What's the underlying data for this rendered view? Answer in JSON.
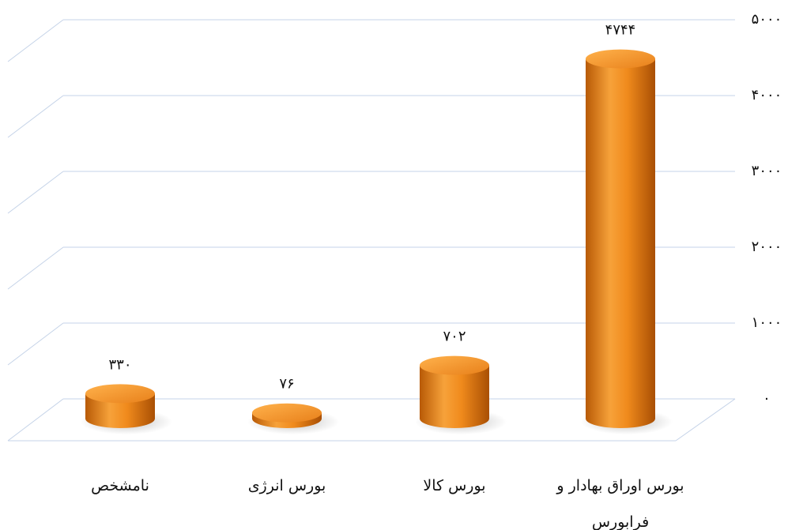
{
  "chart_data": {
    "type": "bar",
    "categories": [
      "نامشخص",
      "بورس انرژی",
      "بورس کالا",
      "بورس اوراق بهادار و فرابورس"
    ],
    "values": [
      330,
      76,
      702,
      4744
    ],
    "value_labels": [
      "۳۳۰",
      "۷۶",
      "۷۰۲",
      "۴۷۴۴"
    ],
    "color": "#f08a1c",
    "ylim": [
      0,
      5000
    ],
    "yticks": [
      {
        "value": 0,
        "label": "۰"
      },
      {
        "value": 1000,
        "label": "۱۰۰۰"
      },
      {
        "value": 2000,
        "label": "۲۰۰۰"
      },
      {
        "value": 3000,
        "label": "۳۰۰۰"
      },
      {
        "value": 4000,
        "label": "۴۰۰۰"
      },
      {
        "value": 5000,
        "label": "۵۰۰۰"
      }
    ],
    "grid": true
  }
}
